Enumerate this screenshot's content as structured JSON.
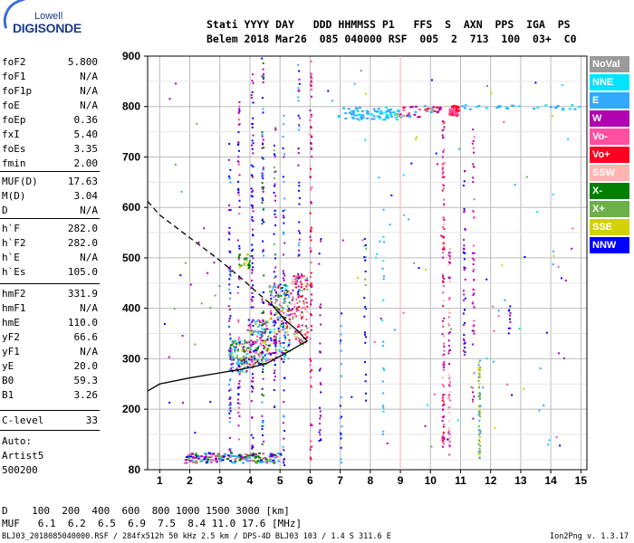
{
  "logo": {
    "top": "Lowell",
    "main": "DIGISONDE"
  },
  "header": {
    "line1": "Stati YYYY DAY   DDD HHMMSS P1   FFS  S  AXN  PPS  IGA  PS",
    "line2": "Belem 2018 Mar26  085 040000 RSF  005  2  713  100  03+  C0"
  },
  "params": [
    {
      "name": "foF2",
      "value": "5.800"
    },
    {
      "name": "foF1",
      "value": "N/A"
    },
    {
      "name": "foF1p",
      "value": "N/A"
    },
    {
      "name": "foE",
      "value": "N/A"
    },
    {
      "name": "foEp",
      "value": "0.36"
    },
    {
      "name": "fxI",
      "value": "5.40"
    },
    {
      "name": "foEs",
      "value": "3.35"
    },
    {
      "name": "fmin",
      "value": "2.00"
    },
    {
      "name": "MUF(D)",
      "value": "17.63"
    },
    {
      "name": "M(D)",
      "value": "3.04"
    },
    {
      "name": "D",
      "value": "N/A"
    },
    {
      "name": "h`F",
      "value": "282.0"
    },
    {
      "name": "h`F2",
      "value": "282.0"
    },
    {
      "name": "h`E",
      "value": "N/A"
    },
    {
      "name": "h`Es",
      "value": "105.0"
    },
    {
      "name": "hmF2",
      "value": "331.9"
    },
    {
      "name": "hmF1",
      "value": "N/A"
    },
    {
      "name": "hmE",
      "value": "110.0"
    },
    {
      "name": "yF2",
      "value": "66.6"
    },
    {
      "name": "yF1",
      "value": "N/A"
    },
    {
      "name": "yE",
      "value": "20.0"
    },
    {
      "name": "B0",
      "value": "59.3"
    },
    {
      "name": "B1",
      "value": "3.26"
    },
    {
      "name": "C-level",
      "value": "33"
    }
  ],
  "auto": {
    "l1": "Auto:",
    "l2": "Artist5",
    "l3": "500200"
  },
  "legend": [
    {
      "label": "NoVal",
      "color": "#9a9a9a"
    },
    {
      "label": "NNE",
      "color": "#00e5ff"
    },
    {
      "label": "E",
      "color": "#31a9ff"
    },
    {
      "label": "W",
      "color": "#b000b0"
    },
    {
      "label": "Vo-",
      "color": "#ff4fa0"
    },
    {
      "label": "Vo+",
      "color": "#ff0022"
    },
    {
      "label": "SSW",
      "color": "#ffb4b0"
    },
    {
      "label": "X-",
      "color": "#008000"
    },
    {
      "label": "X+",
      "color": "#6cb04a"
    },
    {
      "label": "SSE",
      "color": "#d2d200"
    },
    {
      "label": "NNW",
      "color": "#0000ff"
    }
  ],
  "bottom": {
    "d_row": "D    100  200  400  600  800 1000 1500 3000 [km]",
    "muf_row": "MUF   6.1  6.2  6.5  6.9  7.5  8.4 11.0 17.6 [MHz]",
    "footer_left": "BLJ03_2018085040000.RSF / 284fx512h 50 kHz 2.5 km / DPS-4D BLJ03 103 / 1.4 S 311.6 E",
    "footer_right": "Ion2Png v. 1.3.17"
  },
  "chart_data": {
    "type": "scatter",
    "xlabel": "",
    "ylabel": "",
    "xlim": [
      0.6,
      15.2
    ],
    "ylim": [
      80,
      900
    ],
    "xticks": [
      1,
      2,
      3,
      4,
      5,
      6,
      7,
      8,
      9,
      10,
      11,
      12,
      13,
      14,
      15
    ],
    "yticks": [
      80,
      200,
      300,
      400,
      500,
      600,
      700,
      800,
      900
    ],
    "grid": true,
    "legend_position": "right",
    "profile_solid": [
      [
        0.6,
        236
      ],
      [
        1.0,
        250
      ],
      [
        2.0,
        262
      ],
      [
        3.0,
        272
      ],
      [
        3.8,
        280
      ],
      [
        4.2,
        285
      ],
      [
        4.6,
        292
      ],
      [
        5.0,
        305
      ],
      [
        5.4,
        318
      ],
      [
        5.8,
        332
      ],
      [
        5.9,
        335
      ],
      [
        5.6,
        355
      ],
      [
        5.2,
        375
      ],
      [
        4.9,
        395
      ],
      [
        4.7,
        410
      ]
    ],
    "profile_dashed": [
      [
        0.6,
        612
      ],
      [
        1.0,
        585
      ],
      [
        2.0,
        540
      ],
      [
        3.0,
        495
      ],
      [
        3.8,
        455
      ],
      [
        4.3,
        428
      ],
      [
        4.7,
        408
      ]
    ]
  }
}
